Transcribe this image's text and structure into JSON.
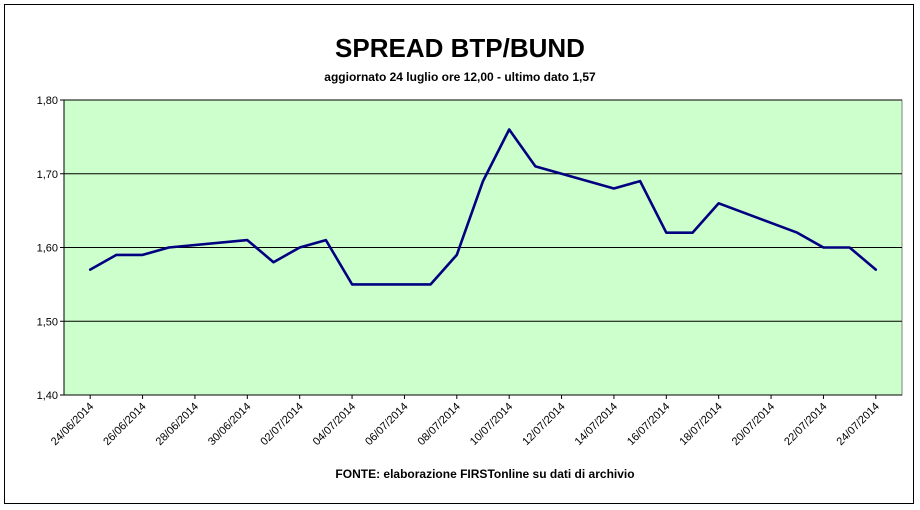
{
  "chart_data": {
    "type": "line",
    "title": "SPREAD BTP/BUND",
    "subtitle": "aggiornato 24 luglio ore 12,00 - ultimo dato 1,57",
    "source": "FONTE:  elaborazione FIRSTonline su dati di archivio",
    "xlabel": "",
    "ylabel": "",
    "ylim": [
      1.4,
      1.8
    ],
    "yticks": [
      "1,40",
      "1,50",
      "1,60",
      "1,70",
      "1,80"
    ],
    "xticks": [
      "24/06/2014",
      "26/06/2014",
      "28/06/2014",
      "30/06/2014",
      "02/07/2014",
      "04/07/2014",
      "06/07/2014",
      "08/07/2014",
      "10/07/2014",
      "12/07/2014",
      "14/07/2014",
      "16/07/2014",
      "18/07/2014",
      "20/07/2014",
      "22/07/2014",
      "24/07/2014"
    ],
    "grid": true,
    "colors": {
      "plot_background": "#ccffcc",
      "line": "#000080",
      "grid": "#000000"
    },
    "series": [
      {
        "points": [
          [
            "24/06/2014",
            1.57
          ],
          [
            "25/06/2014",
            1.59
          ],
          [
            "26/06/2014",
            1.59
          ],
          [
            "27/06/2014",
            1.6
          ],
          [
            "30/06/2014",
            1.61
          ],
          [
            "01/07/2014",
            1.58
          ],
          [
            "02/07/2014",
            1.6
          ],
          [
            "03/07/2014",
            1.61
          ],
          [
            "04/07/2014",
            1.55
          ],
          [
            "07/07/2014",
            1.55
          ],
          [
            "08/07/2014",
            1.59
          ],
          [
            "09/07/2014",
            1.69
          ],
          [
            "10/07/2014",
            1.76
          ],
          [
            "11/07/2014",
            1.71
          ],
          [
            "14/07/2014",
            1.68
          ],
          [
            "15/07/2014",
            1.69
          ],
          [
            "16/07/2014",
            1.62
          ],
          [
            "17/07/2014",
            1.62
          ],
          [
            "18/07/2014",
            1.66
          ],
          [
            "21/07/2014",
            1.62
          ],
          [
            "22/07/2014",
            1.6
          ],
          [
            "23/07/2014",
            1.6
          ],
          [
            "24/07/2014",
            1.57
          ]
        ]
      }
    ]
  }
}
